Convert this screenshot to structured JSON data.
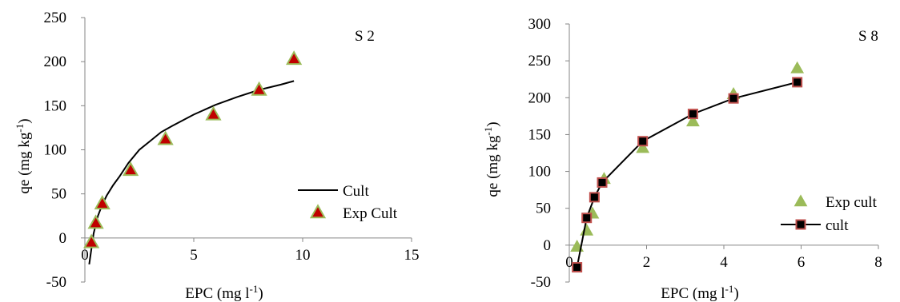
{
  "chart_data": [
    {
      "type": "scatter",
      "panel_label": "S 2",
      "xlabel": "EPC (mg l",
      "xlabel_sup": "-1",
      "xlabel_end": ")",
      "ylabel": "qe (mg kg",
      "ylabel_sup": "-1",
      "ylabel_end": ")",
      "xlim": [
        0,
        15
      ],
      "ylim": [
        -50,
        250
      ],
      "x_ticks": [
        0,
        5,
        10,
        15
      ],
      "y_ticks": [
        -50,
        0,
        50,
        100,
        150,
        200,
        250
      ],
      "x_tick_labels": [
        "0",
        "5",
        "10",
        "15"
      ],
      "y_tick_labels": [
        "-50",
        "0",
        "50",
        "100",
        "150",
        "200",
        "250"
      ],
      "legend_position": "right",
      "series": [
        {
          "name": "Cult",
          "kind": "line",
          "color": "#000000",
          "x": [
            0.2,
            0.4,
            0.6,
            0.8,
            1.0,
            1.3,
            1.6,
            2.0,
            2.5,
            3.0,
            3.5,
            4.0,
            5.0,
            6.0,
            7.0,
            8.0,
            9.0,
            9.6
          ],
          "y": [
            -30,
            5,
            25,
            38,
            48,
            60,
            70,
            85,
            100,
            110,
            120,
            127,
            140,
            151,
            160,
            168,
            174,
            178
          ]
        },
        {
          "name": "Exp Cult",
          "kind": "marker",
          "marker": "triangle",
          "color": "#c00000",
          "edge_color": "#9bbb59",
          "x": [
            0.3,
            0.5,
            0.8,
            2.1,
            3.7,
            5.9,
            8.0,
            9.6
          ],
          "y": [
            -5,
            17,
            39,
            77,
            112,
            140,
            168,
            203
          ]
        }
      ]
    },
    {
      "type": "scatter",
      "panel_label": "S 8",
      "xlabel": "EPC (mg l",
      "xlabel_sup": "-1",
      "xlabel_end": ")",
      "ylabel": "qe (mg kg",
      "ylabel_sup": "-1",
      "ylabel_end": ")",
      "xlim": [
        0,
        8
      ],
      "ylim": [
        -50,
        300
      ],
      "x_ticks": [
        0,
        2,
        4,
        6,
        8
      ],
      "y_ticks": [
        -50,
        0,
        50,
        100,
        150,
        200,
        250,
        300
      ],
      "x_tick_labels": [
        "0",
        "2",
        "4",
        "6",
        "8"
      ],
      "y_tick_labels": [
        "-50",
        "0",
        "50",
        "100",
        "150",
        "200",
        "250",
        "300"
      ],
      "legend_position": "right",
      "series": [
        {
          "name": "Exp cult",
          "kind": "marker",
          "marker": "triangle",
          "color": "#9bbb59",
          "x": [
            0.2,
            0.45,
            0.6,
            0.9,
            1.9,
            3.2,
            4.25,
            5.9
          ],
          "y": [
            -2,
            20,
            43,
            90,
            132,
            168,
            205,
            240
          ]
        },
        {
          "name": "cult",
          "kind": "line+marker",
          "marker": "square",
          "color": "#000000",
          "edge_color": "#c0504d",
          "x": [
            0.2,
            0.45,
            0.65,
            0.85,
            1.9,
            3.2,
            4.25,
            5.9
          ],
          "y": [
            -30,
            37,
            65,
            85,
            141,
            178,
            199,
            221
          ]
        }
      ]
    }
  ]
}
